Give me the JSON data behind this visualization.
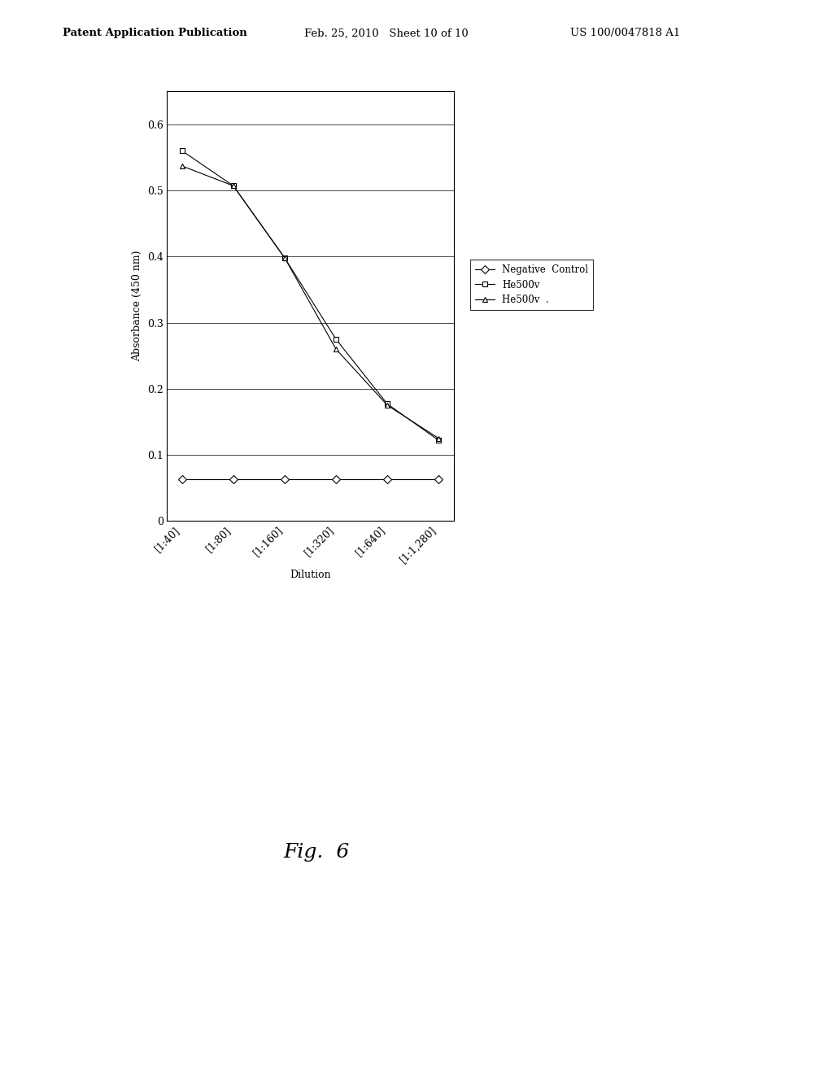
{
  "x_labels": [
    "[1:40]",
    "[1:80]",
    "[1:160]",
    "[1:320]",
    "[1:640]",
    "[1:1,280]"
  ],
  "x_values": [
    0,
    1,
    2,
    3,
    4,
    5
  ],
  "negative_control": [
    0.063,
    0.063,
    0.063,
    0.063,
    0.063,
    0.063
  ],
  "he500v_square": [
    0.56,
    0.507,
    0.398,
    0.275,
    0.177,
    0.122
  ],
  "he500v_triangle": [
    0.537,
    0.507,
    0.398,
    0.26,
    0.175,
    0.125
  ],
  "ylabel": "Absorbance (450 nm)",
  "xlabel": "Dilution",
  "ylim": [
    0,
    0.65
  ],
  "yticks": [
    0,
    0.1,
    0.2,
    0.3,
    0.4,
    0.5,
    0.6
  ],
  "background_color": "#ffffff",
  "fig_caption": "Fig.  6",
  "header_left": "Patent Application Publication",
  "header_mid": "Feb. 25, 2010   Sheet 10 of 10",
  "header_right": "US 100/0047818 A1",
  "legend_nc": "Negative  Control",
  "legend_sq": "He500v",
  "legend_tr": "He500v  ."
}
